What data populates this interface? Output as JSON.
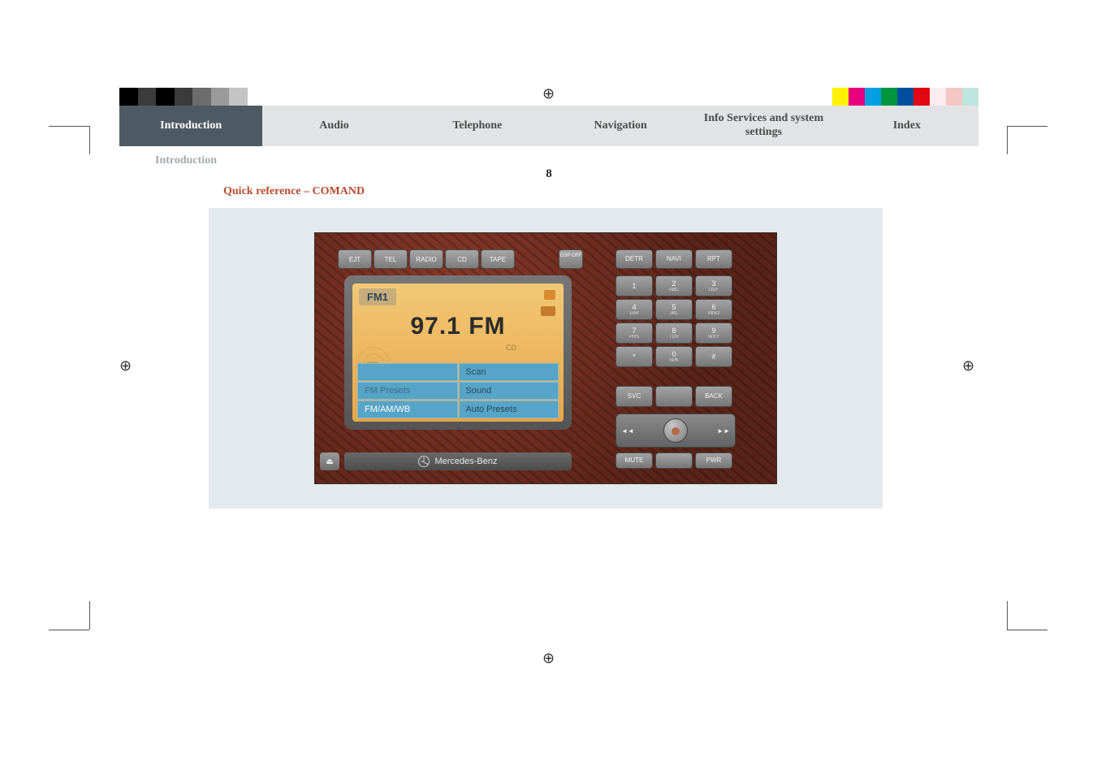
{
  "calibration": {
    "left_colors": [
      "#000000",
      "#3b3b3b",
      "#000000",
      "#3b3b3b",
      "#6c6c6c",
      "#9a9a9a",
      "#c4c4c4",
      "#ffffff"
    ],
    "right_colors": [
      "#fef200",
      "#e6007e",
      "#00a0e3",
      "#009640",
      "#004f9e",
      "#e30613",
      "#fdecef",
      "#f4c7c3",
      "#bfe5e0"
    ]
  },
  "tabs": [
    {
      "label": "Introduction",
      "active": true
    },
    {
      "label": "Audio",
      "active": false
    },
    {
      "label": "Telephone",
      "active": false
    },
    {
      "label": "Navigation",
      "active": false
    },
    {
      "label": "Info Services and system settings",
      "active": false
    },
    {
      "label": "Index",
      "active": false
    }
  ],
  "section_label": "Introduction",
  "page_number": "8",
  "subtitle": "Quick reference – COMAND",
  "comand": {
    "top_row": [
      "EJT",
      "TEL",
      "RADIO",
      "CD",
      "TAPE"
    ],
    "dsp_off": "DSP\nOFF",
    "screen": {
      "band_tab": "FM1",
      "frequency": "97.1 FM",
      "cd_label": "CD",
      "menu": [
        [
          "",
          "Scan"
        ],
        [
          "FM Presets",
          "Sound"
        ],
        [
          "FM/AM/WB",
          "Auto Presets"
        ]
      ],
      "menu_bright_cells": [
        [
          2,
          0
        ]
      ],
      "menu_dim_cells": [
        [
          1,
          0
        ]
      ],
      "colors": {
        "band_text": "#2e4256",
        "freq_text": "#2b2b2b",
        "menu_bg": "#56a4c7",
        "screen_bg_top": "#f2c877",
        "screen_bg_bottom": "#e7a648"
      }
    },
    "brand": "Mercedes-Benz",
    "eject_symbol": "⏏",
    "right": {
      "top": [
        "DETR",
        "NAVI",
        "RPT"
      ],
      "keypad": [
        {
          "n": "1",
          "t": ""
        },
        {
          "n": "2",
          "t": "ABC"
        },
        {
          "n": "3",
          "t": "DEF"
        },
        {
          "n": "4",
          "t": "GHI"
        },
        {
          "n": "5",
          "t": "JKL"
        },
        {
          "n": "6",
          "t": "MNO"
        },
        {
          "n": "7",
          "t": "PRS"
        },
        {
          "n": "8",
          "t": "TUV"
        },
        {
          "n": "9",
          "t": "WXY"
        },
        {
          "n": "*",
          "t": ""
        },
        {
          "n": "0",
          "t": "SPK"
        },
        {
          "n": "#",
          "t": ""
        }
      ],
      "mid": [
        "SVC",
        "",
        "BACK"
      ],
      "knob_left": "◄◄",
      "knob_right": "►►",
      "bottom": [
        "MUTE",
        "",
        "PWR"
      ]
    }
  },
  "colors": {
    "tab_active_bg": "#4e5a63",
    "tab_active_text": "#ffffff",
    "tab_inactive_bg": "#e2e3e4",
    "tab_inactive_text": "#4b4b4b",
    "section_label": "#a6aaad",
    "subtitle": "#b84a2f",
    "figure_bg": "#e3eaee"
  }
}
